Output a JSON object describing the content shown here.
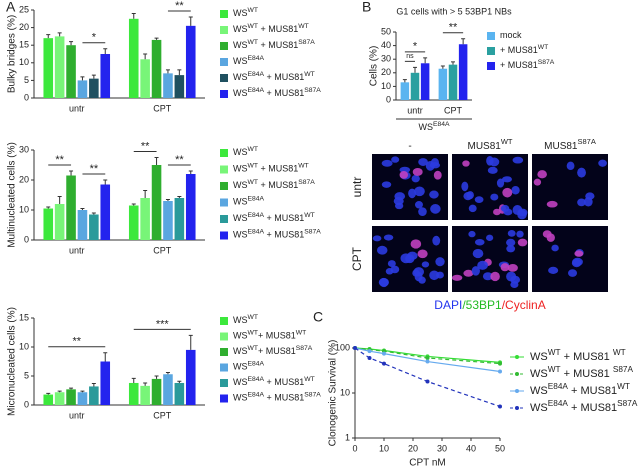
{
  "panels": [
    "A",
    "B",
    "C"
  ],
  "microscopy": {
    "columns": [
      [
        "-"
      ],
      [
        "MUS81",
        "WT"
      ],
      [
        "MUS81",
        "S87A"
      ]
    ],
    "rows": [
      "untr",
      "CPT"
    ],
    "caption": [
      "DAPI",
      "/53BP1",
      "/CyclinA"
    ]
  },
  "chart_data": [
    {
      "type": "bar",
      "y_label": "Bulky bridges (%)",
      "categories": [
        "untr",
        "CPT"
      ],
      "ylim": [
        0,
        25
      ],
      "yticks": [
        0,
        5,
        10,
        15,
        20,
        25
      ],
      "series": [
        {
          "name": [
            "WS",
            "WT"
          ],
          "color": "#3ce83c",
          "values": [
            17,
            22.5
          ],
          "errors": [
            1,
            1.5
          ]
        },
        {
          "name": [
            "WS",
            "WT",
            " + MUS81",
            "WT"
          ],
          "color": "#78f578",
          "values": [
            17.5,
            11
          ],
          "errors": [
            1,
            1.5
          ]
        },
        {
          "name": [
            "WS",
            "WT",
            " + MUS81",
            "S87A"
          ],
          "color": "#2fae2f",
          "values": [
            15,
            16.5
          ],
          "errors": [
            1,
            0.5
          ]
        },
        {
          "name": [
            "WS",
            "E84A"
          ],
          "color": "#5aa6e0",
          "values": [
            5,
            7
          ],
          "errors": [
            1,
            1
          ]
        },
        {
          "name": [
            "WS",
            "E84A",
            " + MUS81",
            "WT"
          ],
          "color": "#1f5060",
          "values": [
            5.5,
            6.5
          ],
          "errors": [
            1,
            1.5
          ]
        },
        {
          "name": [
            "WS",
            "E84A",
            " + MUS81",
            "S87A"
          ],
          "color": "#2323ee",
          "values": [
            12.5,
            20.5
          ],
          "errors": [
            1.5,
            2.5
          ]
        }
      ],
      "annotations": [
        {
          "text": "*",
          "category": 0,
          "series": [
            3,
            5
          ]
        },
        {
          "text": "**",
          "category": 1,
          "series": [
            3,
            5
          ]
        }
      ]
    },
    {
      "type": "bar",
      "y_label": "Multinucleated cells (%)",
      "categories": [
        "untr",
        "CPT"
      ],
      "ylim": [
        0,
        30
      ],
      "yticks": [
        0,
        10,
        20,
        30
      ],
      "series": [
        {
          "name": [
            "WS",
            "WT"
          ],
          "color": "#3ce83c",
          "values": [
            10.5,
            11.5
          ],
          "errors": [
            0.5,
            0.5
          ]
        },
        {
          "name": [
            "WS",
            "WT",
            " + MUS81",
            "WT"
          ],
          "color": "#78f578",
          "values": [
            12,
            14
          ],
          "errors": [
            2.5,
            2.5
          ]
        },
        {
          "name": [
            "WS",
            "WT",
            " + MUS81",
            "S87A"
          ],
          "color": "#2fae2f",
          "values": [
            21.5,
            25
          ],
          "errors": [
            1.5,
            2.5
          ]
        },
        {
          "name": [
            "WS",
            "E84A"
          ],
          "color": "#5aa6e0",
          "values": [
            10,
            13
          ],
          "errors": [
            0.5,
            0.5
          ]
        },
        {
          "name": [
            "WS",
            "E84A",
            " + MUS81",
            "WT"
          ],
          "color": "#2a9a9a",
          "values": [
            8.5,
            14
          ],
          "errors": [
            0.5,
            0.5
          ]
        },
        {
          "name": [
            "WS",
            "E84A",
            " + MUS81",
            "S87A"
          ],
          "color": "#2323ee",
          "values": [
            18.5,
            22
          ],
          "errors": [
            1.5,
            1
          ]
        }
      ],
      "annotations": [
        {
          "text": "**",
          "category": 0,
          "series": [
            0,
            2
          ]
        },
        {
          "text": "**",
          "category": 0,
          "series": [
            3,
            5
          ]
        },
        {
          "text": "**",
          "category": 1,
          "series": [
            0,
            2
          ]
        },
        {
          "text": "**",
          "category": 1,
          "series": [
            3,
            5
          ]
        }
      ]
    },
    {
      "type": "bar",
      "y_label": "Micronucleated cells (%)",
      "categories": [
        "untr",
        "CPT"
      ],
      "ylim": [
        0,
        15
      ],
      "yticks": [
        0,
        5,
        10,
        15
      ],
      "series": [
        {
          "name": [
            "WS",
            "WT"
          ],
          "color": "#3ce83c",
          "values": [
            1.8,
            3.8
          ],
          "errors": [
            0.2,
            0.8
          ]
        },
        {
          "name": [
            "WS",
            "WT",
            "+ MUS81",
            "WT"
          ],
          "color": "#78f578",
          "values": [
            2.2,
            3.3
          ],
          "errors": [
            0.2,
            0.5
          ]
        },
        {
          "name": [
            "WS",
            "WT",
            "+ MUS81",
            "S87A"
          ],
          "color": "#2fae2f",
          "values": [
            2.7,
            4.5
          ],
          "errors": [
            0.2,
            0.5
          ]
        },
        {
          "name": [
            "WS",
            "E84A"
          ],
          "color": "#5aa6e0",
          "values": [
            2.2,
            5.3
          ],
          "errors": [
            0.2,
            0.3
          ]
        },
        {
          "name": [
            "WS",
            "E84A",
            " + MUS81",
            "WT"
          ],
          "color": "#2a9a9a",
          "values": [
            3.2,
            3.8
          ],
          "errors": [
            0.5,
            0.3
          ]
        },
        {
          "name": [
            "WS",
            "E84A",
            " + MUS81",
            "S87A"
          ],
          "color": "#2323ee",
          "values": [
            7.5,
            9.5
          ],
          "errors": [
            1.5,
            2.5
          ]
        }
      ],
      "annotations": [
        {
          "text": "**",
          "category": 0,
          "series": [
            0,
            5
          ]
        },
        {
          "text": "***",
          "category": 1,
          "series": [
            0,
            5
          ]
        }
      ]
    },
    {
      "type": "bar",
      "title": "G1 cells with > 5 53BP1 NBs",
      "y_label": "Cells (%)",
      "group_label": [
        "WS",
        "E84A"
      ],
      "categories": [
        "untr",
        "CPT"
      ],
      "ylim": [
        0,
        50
      ],
      "yticks": [
        0,
        10,
        20,
        30,
        40,
        50
      ],
      "series": [
        {
          "name": [
            "mock"
          ],
          "color": "#5ab4f0",
          "values": [
            13,
            23
          ],
          "errors": [
            2,
            2
          ]
        },
        {
          "name": [
            "+ MUS81",
            "WT"
          ],
          "color": "#2aa0a0",
          "values": [
            20,
            26
          ],
          "errors": [
            4,
            2
          ]
        },
        {
          "name": [
            "+ MUS81",
            "S87A"
          ],
          "color": "#2323ee",
          "values": [
            27,
            41
          ],
          "errors": [
            4,
            4
          ]
        }
      ],
      "annotations": [
        {
          "text": "ns",
          "category": 0,
          "series": [
            0,
            1
          ]
        },
        {
          "text": "*",
          "category": 0,
          "series": [
            0,
            2
          ]
        },
        {
          "text": "**",
          "category": 1,
          "series": [
            0,
            2
          ]
        }
      ]
    },
    {
      "type": "line",
      "x_label": "CPT nM",
      "y_label": "Clonogenic Survival (%)",
      "log_y": true,
      "x": [
        0,
        5,
        10,
        25,
        50
      ],
      "xlim": [
        0,
        50
      ],
      "xticks": [
        0,
        10,
        20,
        30,
        40,
        50
      ],
      "ylim": [
        1,
        100
      ],
      "yticks": [
        1,
        10,
        100
      ],
      "series": [
        {
          "name": [
            "WS",
            "WT",
            " + MUS81 ",
            "WT"
          ],
          "color": "#33dd33",
          "dashed": false,
          "values": [
            100,
            95,
            88,
            65,
            48
          ]
        },
        {
          "name": [
            "WS",
            "WT",
            " + MUS81 ",
            "S87A"
          ],
          "color": "#33bb33",
          "dashed": true,
          "values": [
            100,
            92,
            85,
            60,
            45
          ]
        },
        {
          "name": [
            "WS",
            "E84A",
            " + MUS81",
            "WT"
          ],
          "color": "#66aaee",
          "dashed": false,
          "values": [
            100,
            85,
            75,
            50,
            30
          ]
        },
        {
          "name": [
            "WS",
            "E84A",
            " + MUS81",
            "S87A"
          ],
          "color": "#2233bb",
          "dashed": true,
          "values": [
            100,
            60,
            45,
            18,
            5
          ]
        }
      ]
    }
  ]
}
